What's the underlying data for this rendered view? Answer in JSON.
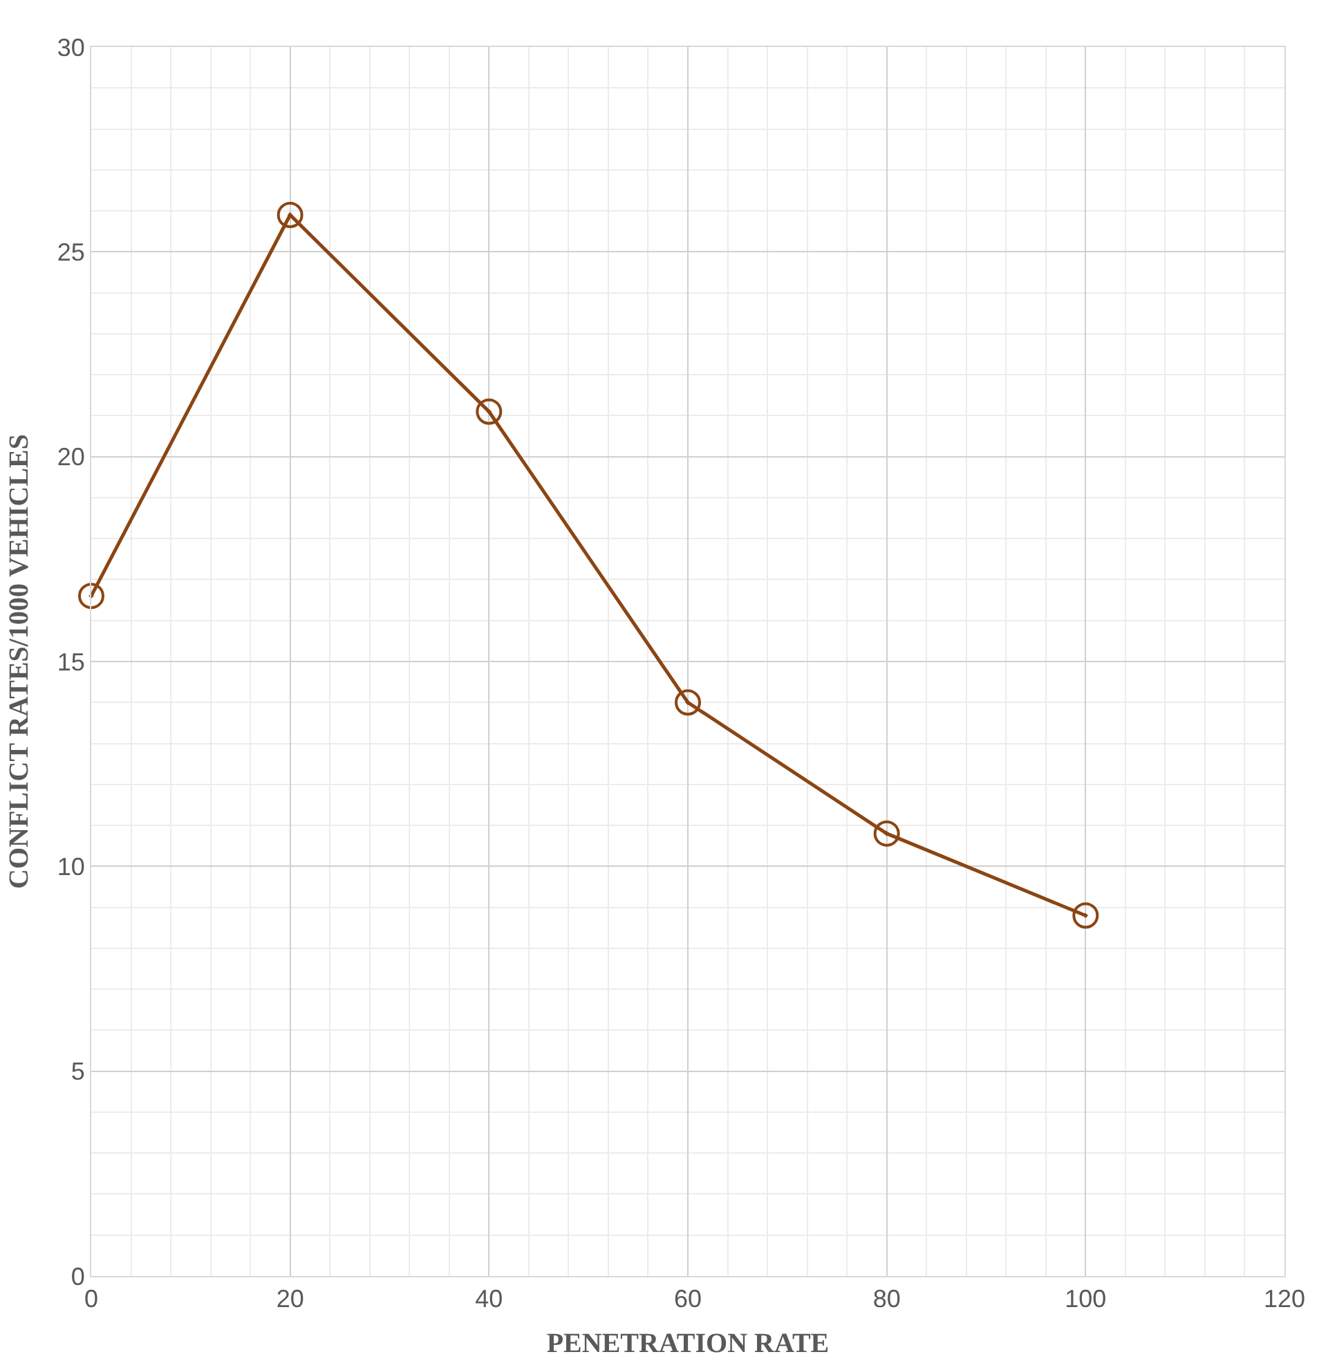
{
  "chart_data": {
    "type": "line",
    "xlabel": "PENETRATION RATE",
    "ylabel": "CONFLICT RATES/1000 VEHICLES",
    "x": [
      0,
      20,
      40,
      60,
      80,
      100
    ],
    "series": [
      {
        "color": "#8b4513",
        "values": [
          16.6,
          25.9,
          21.1,
          14.0,
          10.8,
          8.8
        ]
      }
    ],
    "xlim": [
      0,
      120
    ],
    "xticks": [
      0,
      20,
      40,
      60,
      80,
      100,
      120
    ],
    "ylim": [
      0,
      30
    ],
    "yticks": [
      0,
      5,
      10,
      15,
      20,
      25,
      30
    ],
    "grid": true,
    "marker": "circle",
    "line_style": "solid"
  }
}
